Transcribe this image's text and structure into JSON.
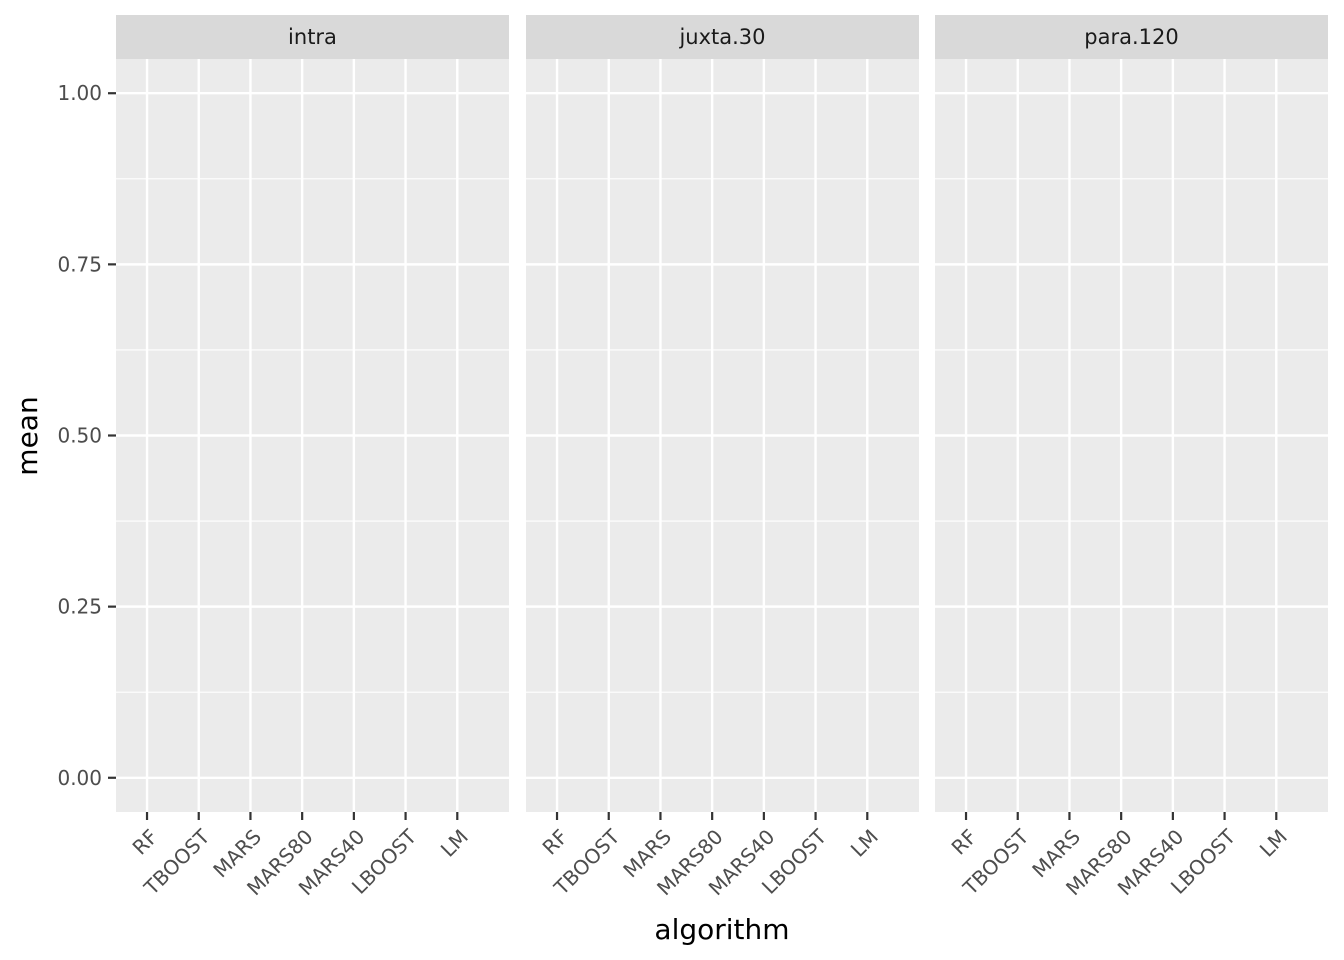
{
  "chart_data": {
    "type": "bar",
    "facet_variable": "",
    "panels": [
      "intra",
      "juxta.30",
      "para.120"
    ],
    "categories": [
      "RF",
      "TBOOST",
      "MARS",
      "MARS80",
      "MARS40",
      "LBOOST",
      "LM"
    ],
    "series": [],
    "xlabel": "algorithm",
    "ylabel": "mean",
    "ylim": [
      -0.05,
      1.05
    ],
    "y_ticks": [
      0,
      0.25,
      0.5,
      0.75,
      1
    ],
    "y_tick_labels": [
      "0.00",
      "0.25",
      "0.50",
      "0.75",
      "1.00"
    ],
    "grid": true,
    "legend": "none"
  },
  "colors": {
    "panel_background": "#ebebeb",
    "strip_background": "#d9d9d9",
    "grid_major": "#ffffff",
    "tick": "#333333"
  }
}
